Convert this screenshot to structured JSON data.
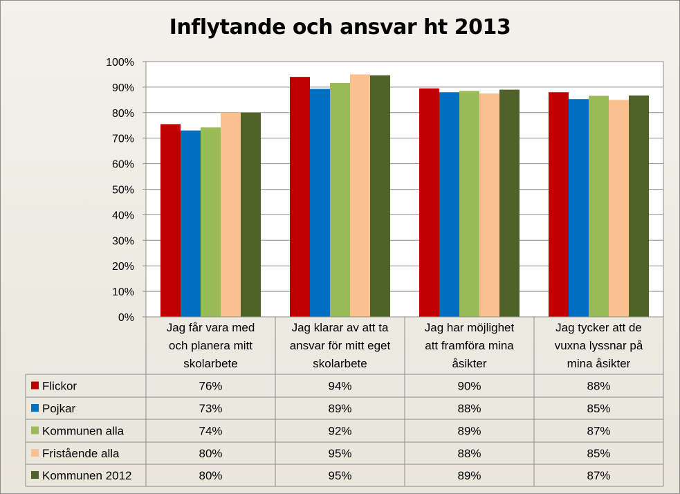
{
  "chart_data": {
    "type": "bar",
    "title": "Inflytande och ansvar ht 2013",
    "xlabel": "",
    "ylabel": "",
    "ylim": [
      0,
      100
    ],
    "yticks": [
      "0%",
      "10%",
      "20%",
      "30%",
      "40%",
      "50%",
      "60%",
      "70%",
      "80%",
      "90%",
      "100%"
    ],
    "grid": true,
    "categories": [
      [
        "Jag får vara med",
        "och planera mitt",
        "skolarbete"
      ],
      [
        "Jag klarar av att ta",
        "ansvar för mitt eget",
        "skolarbete"
      ],
      [
        "Jag har möjlighet",
        "att framföra mina",
        "åsikter"
      ],
      [
        "Jag tycker att de",
        "vuxna lyssnar på",
        "mina åsikter"
      ]
    ],
    "series": [
      {
        "name": "Flickor",
        "color": "#c00000",
        "values": [
          75.5,
          94,
          89.5,
          88
        ],
        "labels": [
          "76%",
          "94%",
          "90%",
          "88%"
        ]
      },
      {
        "name": "Pojkar",
        "color": "#0070c0",
        "values": [
          73,
          89.3,
          88,
          85.3
        ],
        "labels": [
          "73%",
          "89%",
          "88%",
          "85%"
        ]
      },
      {
        "name": "Kommunen alla",
        "color": "#9bbb59",
        "values": [
          74.2,
          91.6,
          88.5,
          86.6
        ],
        "labels": [
          "74%",
          "92%",
          "89%",
          "87%"
        ]
      },
      {
        "name": "Fristående alla",
        "color": "#fac090",
        "values": [
          80,
          95,
          87.5,
          85
        ],
        "labels": [
          "80%",
          "95%",
          "88%",
          "85%"
        ]
      },
      {
        "name": "Kommunen 2012",
        "color": "#4f6228",
        "values": [
          80,
          94.6,
          89,
          86.7
        ],
        "labels": [
          "80%",
          "95%",
          "89%",
          "87%"
        ]
      }
    ]
  }
}
